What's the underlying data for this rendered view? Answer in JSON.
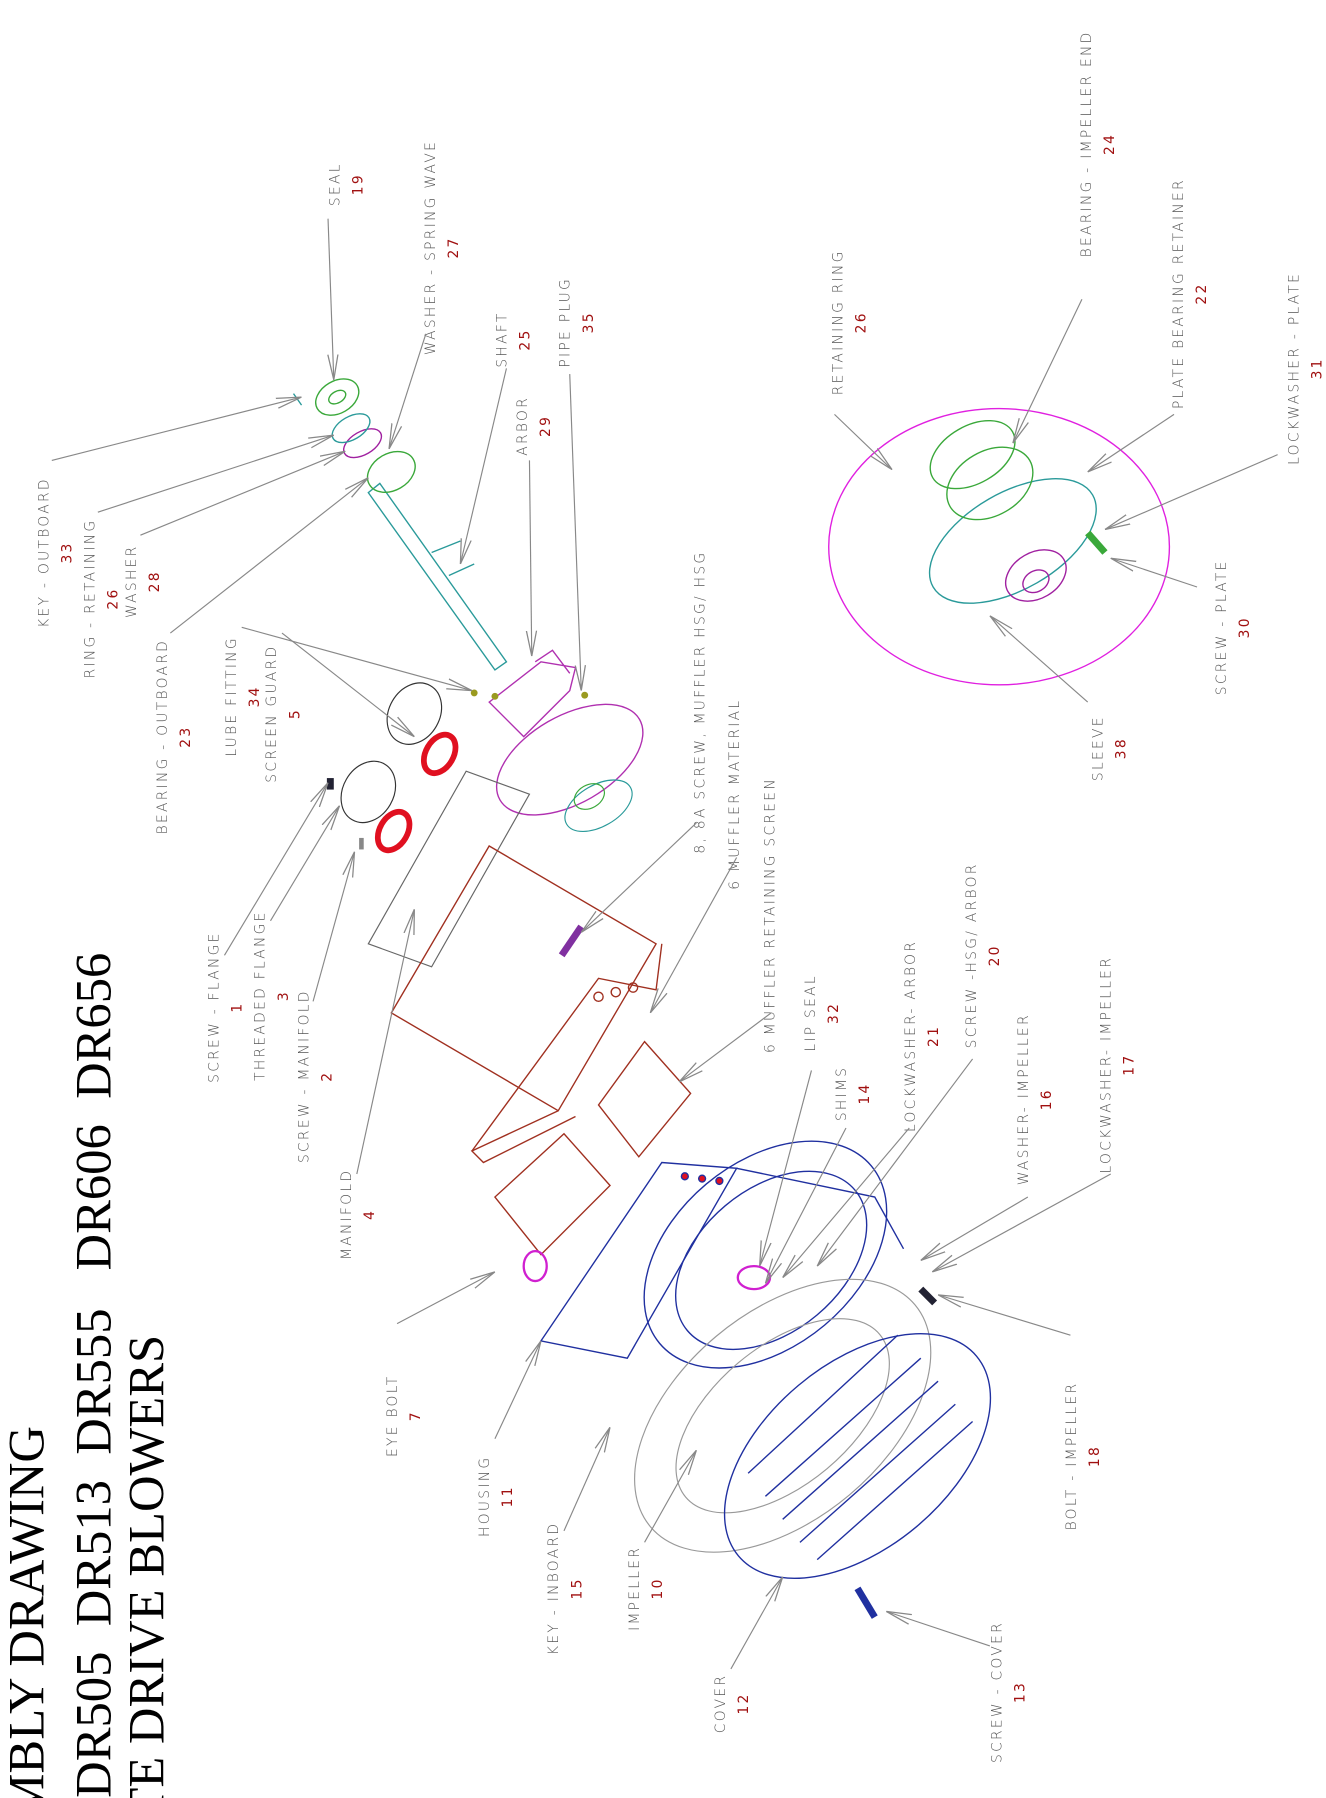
{
  "title": {
    "lines": [
      "MBLY DRAWING",
      "DR505  DR513  DR555   DR606  DR656",
      "TE DRIVE BLOWERS"
    ]
  },
  "parts": [
    {
      "name": "KEY - OUTBOARD",
      "number": "33"
    },
    {
      "name": "RING - RETAINING",
      "number": "26"
    },
    {
      "name": "WASHER",
      "number": "28"
    },
    {
      "name": "BEARING - OUTBOARD",
      "number": "23"
    },
    {
      "name": "LUBE FITTING",
      "number": "34"
    },
    {
      "name": "SCREEN GUARD",
      "number": "5"
    },
    {
      "name": "SCREW - FLANGE",
      "number": "1"
    },
    {
      "name": "THREADED FLANGE",
      "number": "3"
    },
    {
      "name": "SCREW - MANIFOLD",
      "number": "2"
    },
    {
      "name": "MANIFOLD",
      "number": "4"
    },
    {
      "name": "EYE BOLT",
      "number": "7"
    },
    {
      "name": "HOUSING",
      "number": "11"
    },
    {
      "name": "KEY - INBOARD",
      "number": "15"
    },
    {
      "name": "IMPELLER",
      "number": "10"
    },
    {
      "name": "COVER",
      "number": "12"
    },
    {
      "name": "SCREW - COVER",
      "number": "13"
    },
    {
      "name": "BOLT - IMPELLER",
      "number": "18"
    },
    {
      "name": "LOCKWASHER- IMPELLER",
      "number": "17"
    },
    {
      "name": "WASHER- IMPELLER",
      "number": "16"
    },
    {
      "name": "SCREW -HSG/ ARBOR",
      "number": "20"
    },
    {
      "name": "LOCKWASHER- ARBOR",
      "number": "21"
    },
    {
      "name": "SHIMS",
      "number": "14"
    },
    {
      "name": "LIP SEAL",
      "number": "32"
    },
    {
      "name": "6 MUFFLER RETAINING SCREEN"
    },
    {
      "name": "6 MUFFLER MATERIAL"
    },
    {
      "name": "8, 8A SCREW, MUFFLER HSG/ HSG"
    },
    {
      "name": "ARBOR",
      "number": "29"
    },
    {
      "name": "SHAFT",
      "number": "25"
    },
    {
      "name": "PIPE PLUG",
      "number": "35"
    },
    {
      "name": "WASHER - SPRING WAVE",
      "number": "27"
    },
    {
      "name": "SEAL",
      "number": "19"
    },
    {
      "name": "RETAINING RING",
      "number": "26"
    },
    {
      "name": "BEARING - IMPELLER END",
      "number": "24"
    },
    {
      "name": "PLATE BEARING RETAINER",
      "number": "22"
    },
    {
      "name": "LOCKWASHER - PLATE",
      "number": "31"
    },
    {
      "name": "SCREW - PLATE",
      "number": "30"
    },
    {
      "name": "SLEEVE",
      "number": "38"
    }
  ]
}
